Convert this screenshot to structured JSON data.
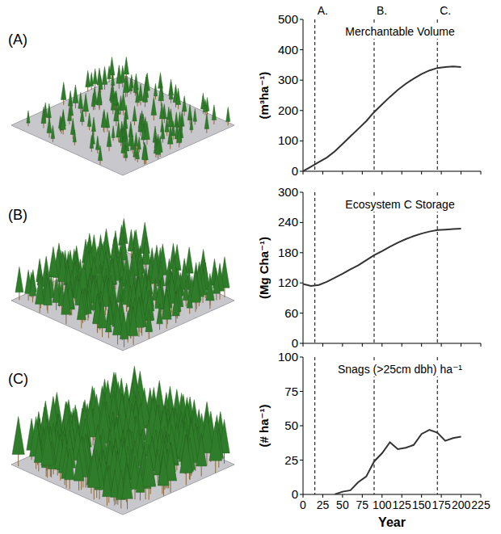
{
  "chart_data": [
    {
      "type": "line",
      "title": "Merchantable Volume",
      "y_label": "(m³ha⁻¹)",
      "x": [
        0,
        10,
        20,
        30,
        40,
        50,
        60,
        70,
        80,
        90,
        100,
        110,
        120,
        130,
        140,
        150,
        160,
        170,
        180,
        190,
        200
      ],
      "values": [
        0,
        15,
        30,
        45,
        65,
        90,
        115,
        140,
        165,
        195,
        220,
        245,
        268,
        288,
        305,
        320,
        332,
        340,
        343,
        345,
        343
      ],
      "color": "#333333",
      "xlim": [
        0,
        225
      ],
      "xticks": [
        0,
        25,
        50,
        75,
        100,
        125,
        150,
        175,
        200,
        225
      ],
      "ylim": [
        0,
        500
      ],
      "yticks": [
        0,
        100,
        200,
        300,
        400,
        500
      ],
      "tick_labels": "y"
    },
    {
      "type": "line",
      "title": "Ecosystem C Storage",
      "y_label": "(Mg Cha⁻¹)",
      "x": [
        0,
        10,
        20,
        30,
        40,
        50,
        60,
        70,
        80,
        90,
        100,
        110,
        120,
        130,
        140,
        150,
        160,
        170,
        180,
        190,
        200
      ],
      "values": [
        118,
        114,
        116,
        122,
        130,
        138,
        147,
        155,
        165,
        175,
        183,
        192,
        200,
        207,
        213,
        218,
        222,
        225,
        226,
        227,
        228
      ],
      "color": "#333333",
      "xlim": [
        0,
        225
      ],
      "xticks": [
        0,
        25,
        50,
        75,
        100,
        125,
        150,
        175,
        200,
        225
      ],
      "ylim": [
        0,
        300
      ],
      "yticks": [
        0,
        60,
        120,
        180,
        240,
        300
      ],
      "tick_labels": "y"
    },
    {
      "type": "line",
      "title": "Snags (>25cm dbh) ha⁻¹",
      "y_label": "(# ha⁻¹)",
      "x_label": "Year",
      "x": [
        40,
        50,
        60,
        70,
        80,
        90,
        100,
        110,
        120,
        130,
        140,
        150,
        160,
        170,
        180,
        190,
        200
      ],
      "values": [
        0,
        2,
        3,
        9,
        13,
        24,
        30,
        38,
        33,
        34,
        36,
        44,
        47,
        45,
        39,
        41,
        42
      ],
      "color": "#333333",
      "xlim": [
        0,
        225
      ],
      "xticks": [
        0,
        25,
        50,
        75,
        100,
        125,
        150,
        175,
        200,
        225
      ],
      "ylim": [
        0,
        100
      ],
      "yticks": [
        0,
        25,
        50,
        75,
        100
      ]
    }
  ],
  "reference_lines": {
    "x": [
      15,
      90,
      170
    ],
    "labels": [
      "A.",
      "B.",
      "C."
    ]
  },
  "stand_images": [
    {
      "label": "(A)"
    },
    {
      "label": "(B)"
    },
    {
      "label": "(C)"
    }
  ]
}
